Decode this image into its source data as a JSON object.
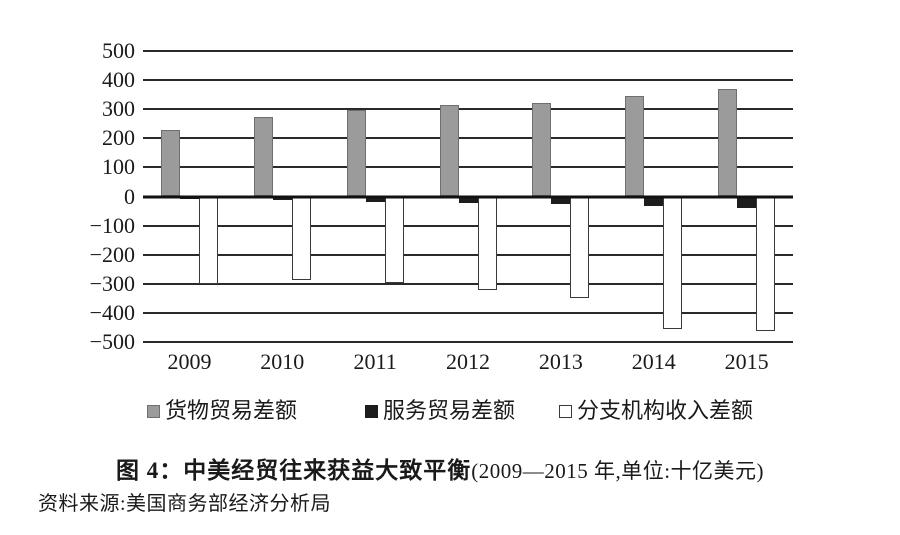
{
  "figure": {
    "title_bold": "图 4：中美经贸往来获益大致平衡",
    "title_note": "(2009—2015 年,单位:十亿美元)",
    "source": "资料来源:美国商务部经济分析局"
  },
  "chart_data": {
    "type": "bar",
    "title": "图 4：中美经贸往来获益大致平衡",
    "subtitle": "2009—2015 年,单位:十亿美元",
    "categories": [
      "2009",
      "2010",
      "2011",
      "2012",
      "2013",
      "2014",
      "2015"
    ],
    "series": [
      {
        "name": "货物贸易差额",
        "color": "#9b9b9b",
        "border": "#6f6f6f",
        "values": [
          227,
          273,
          296,
          315,
          320,
          345,
          368
        ]
      },
      {
        "name": "服务贸易差额",
        "color": "#1d1d1d",
        "border": "#1d1d1d",
        "values": [
          -8,
          -13,
          -18,
          -22,
          -26,
          -32,
          -38
        ]
      },
      {
        "name": "分支机构收入差额",
        "color": "#ffffff",
        "border": "#3a3a3a",
        "values": [
          -300,
          -287,
          -296,
          -320,
          -350,
          -455,
          -463
        ]
      }
    ],
    "ylim": [
      -500,
      500
    ],
    "ytick_step": 100,
    "ytick_labels": [
      "500",
      "400",
      "300",
      "200",
      "100",
      "0",
      "−100",
      "−200",
      "−300",
      "−400",
      "−500"
    ],
    "xlabel": "",
    "ylabel": "",
    "grid": true,
    "legend_position": "bottom",
    "gridline_color": "#2a2a2a"
  }
}
